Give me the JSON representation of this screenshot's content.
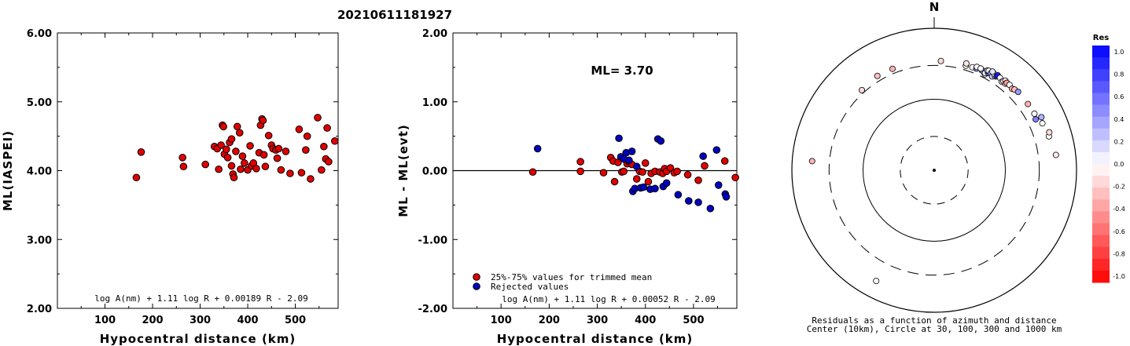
{
  "title": "20210611181927",
  "chart_data": [
    {
      "type": "scatter",
      "ylabel": "ML(IASPEI)",
      "xlabel": "Hypocentral distance (km)",
      "xlim": [
        0,
        590
      ],
      "ylim": [
        2.0,
        6.0
      ],
      "xticks": [
        "100",
        "200",
        "300",
        "400",
        "500"
      ],
      "yticks": [
        "2.00",
        "3.00",
        "4.00",
        "5.00",
        "6.00"
      ],
      "formula": "log A(nm) + 1.11 log R + 0.00189 R - 2.09",
      "points": [
        [
          166,
          3.9
        ],
        [
          176,
          4.27
        ],
        [
          263,
          4.19
        ],
        [
          265,
          4.06
        ],
        [
          311,
          4.09
        ],
        [
          330,
          4.35
        ],
        [
          336,
          4.32
        ],
        [
          339,
          4.02
        ],
        [
          344,
          4.37
        ],
        [
          347,
          4.66
        ],
        [
          349,
          4.64
        ],
        [
          351,
          4.24
        ],
        [
          355,
          4.31
        ],
        [
          358,
          4.19
        ],
        [
          362,
          4.41
        ],
        [
          366,
          4.07
        ],
        [
          366,
          4.46
        ],
        [
          369,
          3.95
        ],
        [
          371,
          3.9
        ],
        [
          375,
          4.28
        ],
        [
          378,
          4.64
        ],
        [
          383,
          4.55
        ],
        [
          385,
          4.02
        ],
        [
          389,
          4.21
        ],
        [
          393,
          4.11
        ],
        [
          400,
          4.01
        ],
        [
          405,
          4.36
        ],
        [
          408,
          4.07
        ],
        [
          412,
          4.11
        ],
        [
          418,
          4.03
        ],
        [
          424,
          4.26
        ],
        [
          427,
          4.66
        ],
        [
          430,
          4.75
        ],
        [
          432,
          4.73
        ],
        [
          434,
          4.23
        ],
        [
          437,
          4.06
        ],
        [
          444,
          4.51
        ],
        [
          450,
          4.37
        ],
        [
          453,
          4.32
        ],
        [
          459,
          4.3
        ],
        [
          462,
          4.18
        ],
        [
          465,
          4.32
        ],
        [
          470,
          4.01
        ],
        [
          480,
          4.28
        ],
        [
          489,
          3.96
        ],
        [
          508,
          4.6
        ],
        [
          513,
          3.97
        ],
        [
          522,
          4.3
        ],
        [
          525,
          4.5
        ],
        [
          532,
          3.88
        ],
        [
          547,
          4.77
        ],
        [
          555,
          4.01
        ],
        [
          560,
          4.35
        ],
        [
          564,
          4.17
        ],
        [
          567,
          4.62
        ],
        [
          570,
          4.13
        ],
        [
          583,
          4.43
        ]
      ]
    },
    {
      "type": "scatter",
      "ylabel": "ML - ML(evt)",
      "xlabel": "Hypocentral distance (km)",
      "xlim": [
        0,
        590
      ],
      "ylim": [
        -2.0,
        2.0
      ],
      "xticks": [
        "100",
        "200",
        "300",
        "400",
        "500"
      ],
      "yticks": [
        "-2.00",
        "-1.00",
        "0.00",
        "1.00",
        "2.00"
      ],
      "ml_label": "ML= 3.70",
      "reference_line": 0.0,
      "formula": "log A(nm) + 1.11 log R + 0.00052 R - 2.09",
      "legend": [
        "25%-75% values for trimmed mean",
        "Rejected values"
      ],
      "series": [
        {
          "name": "25%-75% values for trimmed mean",
          "color": "#e00000",
          "points": [
            [
              166,
              -0.02
            ],
            [
              265,
              0.13
            ],
            [
              265,
              -0.01
            ],
            [
              313,
              -0.03
            ],
            [
              328,
              0.19
            ],
            [
              333,
              0.14
            ],
            [
              336,
              -0.16
            ],
            [
              343,
              0.12
            ],
            [
              351,
              -0.02
            ],
            [
              355,
              -0.01
            ],
            [
              362,
              0.1
            ],
            [
              366,
              0.13
            ],
            [
              372,
              0.09
            ],
            [
              382,
              -0.12
            ],
            [
              388,
              -0.01
            ],
            [
              394,
              -0.02
            ],
            [
              400,
              0.11
            ],
            [
              406,
              -0.16
            ],
            [
              412,
              -0.04
            ],
            [
              420,
              -0.01
            ],
            [
              430,
              -0.02
            ],
            [
              436,
              -0.04
            ],
            [
              440,
              0.03
            ],
            [
              444,
              -0.01
            ],
            [
              452,
              0.04
            ],
            [
              460,
              -0.03
            ],
            [
              466,
              -0.01
            ],
            [
              488,
              -0.06
            ],
            [
              510,
              -0.14
            ],
            [
              523,
              0.07
            ],
            [
              565,
              0.14
            ],
            [
              587,
              -0.1
            ]
          ]
        },
        {
          "name": "Rejected values",
          "color": "#0000c0",
          "points": [
            [
              176,
              0.32
            ],
            [
              345,
              0.47
            ],
            [
              349,
              0.2
            ],
            [
              355,
              0.17
            ],
            [
              360,
              0.26
            ],
            [
              366,
              0.15
            ],
            [
              372,
              0.28
            ],
            [
              374,
              -0.3
            ],
            [
              378,
              -0.26
            ],
            [
              382,
              0.06
            ],
            [
              390,
              -0.25
            ],
            [
              396,
              -0.24
            ],
            [
              410,
              -0.27
            ],
            [
              420,
              -0.26
            ],
            [
              426,
              0.46
            ],
            [
              432,
              0.43
            ],
            [
              437,
              -0.23
            ],
            [
              444,
              -0.18
            ],
            [
              468,
              -0.35
            ],
            [
              490,
              -0.44
            ],
            [
              510,
              -0.46
            ],
            [
              520,
              0.21
            ],
            [
              535,
              -0.55
            ],
            [
              548,
              0.3
            ],
            [
              552,
              -0.21
            ],
            [
              566,
              -0.34
            ],
            [
              568,
              -0.38
            ]
          ]
        }
      ]
    },
    {
      "type": "scatter",
      "subtype": "polar-azimuth-distance",
      "north_label": "N",
      "caption": [
        "Residuals as a function of azimuth and distance",
        "Center (10km), Circle at 30, 100, 300 and 1000 km"
      ],
      "rings_km": [
        30,
        100,
        300,
        1000
      ],
      "colorbar": {
        "title": "Res",
        "ticks": [
          "1.0",
          "0.8",
          "0.6",
          "0.4",
          "0.2",
          "0.0",
          "-0.2",
          "-0.4",
          "-0.6",
          "-0.8",
          "-1.0"
        ],
        "min": -1.0,
        "max": 1.0
      },
      "points": [
        {
          "azimuth": -42.0,
          "distance_km": 330,
          "residual": -0.15
        },
        {
          "azimuth": -31.0,
          "distance_km": 355,
          "residual": -0.25
        },
        {
          "azimuth": -22.3,
          "distance_km": 350,
          "residual": -0.3
        },
        {
          "azimuth": 3.5,
          "distance_km": 348,
          "residual": -0.15
        },
        {
          "azimuth": 16.8,
          "distance_km": 345,
          "residual": 0.0
        },
        {
          "azimuth": 16.7,
          "distance_km": 372,
          "residual": -0.1
        },
        {
          "azimuth": 20.3,
          "distance_km": 352,
          "residual": 0.0
        },
        {
          "azimuth": 22.5,
          "distance_km": 355,
          "residual": 0.45
        },
        {
          "azimuth": 22.4,
          "distance_km": 375,
          "residual": 0.0
        },
        {
          "azimuth": 25.4,
          "distance_km": 364,
          "residual": 0.3
        },
        {
          "azimuth": 25.8,
          "distance_km": 362,
          "residual": 0.5
        },
        {
          "azimuth": 24.5,
          "distance_km": 376,
          "residual": 0.0
        },
        {
          "azimuth": 27.8,
          "distance_km": 336,
          "residual": -0.1
        },
        {
          "azimuth": 27.6,
          "distance_km": 350,
          "residual": 0.0
        },
        {
          "azimuth": 28.9,
          "distance_km": 368,
          "residual": 0.6
        },
        {
          "azimuth": 28.0,
          "distance_km": 390,
          "residual": 0.1
        },
        {
          "azimuth": 28.7,
          "distance_km": 395,
          "residual": 0.0
        },
        {
          "azimuth": 30.2,
          "distance_km": 380,
          "residual": 0.35
        },
        {
          "azimuth": 31.6,
          "distance_km": 356,
          "residual": 0.25
        },
        {
          "azimuth": 33.0,
          "distance_km": 377,
          "residual": 0.3
        },
        {
          "azimuth": 31.6,
          "distance_km": 398,
          "residual": 0.0
        },
        {
          "azimuth": 30.5,
          "distance_km": 410,
          "residual": 0.1
        },
        {
          "azimuth": 33.6,
          "distance_km": 388,
          "residual": 0.7
        },
        {
          "azimuth": 33.7,
          "distance_km": 405,
          "residual": 0.9
        },
        {
          "azimuth": 35.4,
          "distance_km": 395,
          "residual": 0.0
        },
        {
          "azimuth": 37.3,
          "distance_km": 369,
          "residual": -0.2
        },
        {
          "azimuth": 37.8,
          "distance_km": 388,
          "residual": 0.0
        },
        {
          "azimuth": 38.4,
          "distance_km": 407,
          "residual": 0.0
        },
        {
          "azimuth": 39.4,
          "distance_km": 378,
          "residual": -0.2
        },
        {
          "azimuth": 39.6,
          "distance_km": 397,
          "residual": -0.4
        },
        {
          "azimuth": 41.4,
          "distance_km": 400,
          "residual": 0.0
        },
        {
          "azimuth": 43.6,
          "distance_km": 385,
          "residual": -0.35
        },
        {
          "azimuth": 44.8,
          "distance_km": 400,
          "residual": -0.25
        },
        {
          "azimuth": 46.9,
          "distance_km": 412,
          "residual": 0.4
        },
        {
          "azimuth": 54.7,
          "distance_km": 411,
          "residual": -0.3
        },
        {
          "azimuth": 60.5,
          "distance_km": 415,
          "residual": 0.0
        },
        {
          "azimuth": 63.3,
          "distance_km": 395,
          "residual": 0.5
        },
        {
          "azimuth": 66.5,
          "distance_km": 455,
          "residual": 0.0
        },
        {
          "azimuth": 63.6,
          "distance_km": 480,
          "residual": 0.3
        },
        {
          "azimuth": 73.5,
          "distance_km": 480,
          "residual": 0.0
        },
        {
          "azimuth": 71.7,
          "distance_km": 505,
          "residual": -0.15
        },
        {
          "azimuth": 82.8,
          "distance_km": 530,
          "residual": -0.1
        },
        {
          "azimuth": -85.7,
          "distance_km": 525,
          "residual": -0.3
        },
        {
          "azimuth": -152.4,
          "distance_km": 575,
          "residual": 0.0
        }
      ]
    }
  ]
}
